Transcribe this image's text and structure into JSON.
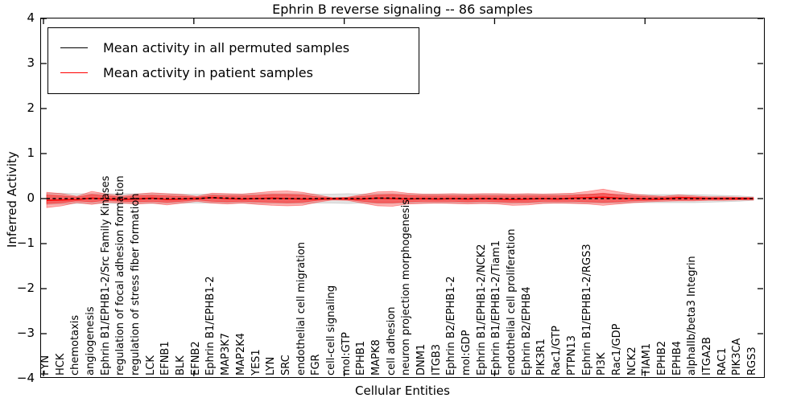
{
  "title": "Ephrin B reverse signaling -- 86 samples",
  "axes": {
    "xlabel": "Cellular Entities",
    "ylabel": "Inferred Activity",
    "yticks": [
      {
        "label": "4",
        "value": 4
      },
      {
        "label": "3",
        "value": 3
      },
      {
        "label": "2",
        "value": 2
      },
      {
        "label": "1",
        "value": 1
      },
      {
        "label": "0",
        "value": 0
      },
      {
        "label": "−1",
        "value": -1
      },
      {
        "label": "−2",
        "value": -2
      },
      {
        "label": "−3",
        "value": -3
      },
      {
        "label": "−4",
        "value": -4
      }
    ],
    "xtick_indices": [
      0,
      10,
      20,
      30,
      40
    ],
    "frame_color": "#000000"
  },
  "legend": {
    "items": [
      {
        "label": "Mean activity in all permuted samples",
        "color": "#000000"
      },
      {
        "label": "Mean activity in patient samples",
        "color": "#ff0000"
      }
    ]
  },
  "chart_data": {
    "type": "line",
    "title": "Ephrin B reverse signaling -- 86 samples",
    "xlabel": "Cellular Entities",
    "ylabel": "Inferred Activity",
    "ylim": [
      -4,
      4
    ],
    "grid": false,
    "legend_position": "upper left",
    "categories": [
      "FYN",
      "HCK",
      "chemotaxis",
      "angiogenesis",
      "Ephrin B1/EPHB1-2/Src Family Kinases",
      "regulation of focal adhesion formation",
      "regulation of stress fiber formation",
      "LCK",
      "EFNB1",
      "BLK",
      "EFNB2",
      "Ephrin B1/EPHB1-2",
      "MAP3K7",
      "MAP2K4",
      "YES1",
      "LYN",
      "SRC",
      "endothelial cell migration",
      "FGR",
      "cell-cell signaling",
      "mol:GTP",
      "EPHB1",
      "MAPK8",
      "cell adhesion",
      "neuron projection morphogenesis",
      "DNM1",
      "ITGB3",
      "Ephrin B2/EPHB1-2",
      "mol:GDP",
      "Ephrin B1/EPHB1-2/NCK2",
      "Ephrin B1/EPHB1-2/Tiam1",
      "endothelial cell proliferation",
      "Ephrin B2/EPHB4",
      "PIK3R1",
      "Rac1/GTP",
      "PTPN13",
      "Ephrin B1/EPHB1-2/RGS3",
      "PI3K",
      "Rac1/GDP",
      "NCK2",
      "TIAM1",
      "EPHB2",
      "EPHB4",
      "alphaIIb/beta3 Integrin",
      "ITGA2B",
      "RAC1",
      "PIK3CA",
      "RGS3"
    ],
    "series": [
      {
        "name": "Mean activity in all permuted samples",
        "color": "#000000",
        "style": "dashed",
        "values": [
          0,
          0,
          0,
          0,
          0,
          0,
          0,
          0,
          0,
          0,
          0,
          0.02,
          0.01,
          0,
          0,
          0,
          0,
          0,
          0,
          0,
          0,
          0,
          0.01,
          0.01,
          0,
          0,
          0,
          0,
          0,
          0,
          0,
          0,
          0,
          0,
          0,
          0,
          0,
          0,
          0,
          0,
          0,
          0,
          0,
          0,
          0,
          0,
          0,
          0
        ]
      },
      {
        "name": "Mean activity in patient samples",
        "color": "#ff0000",
        "style": "solid",
        "values": [
          -0.04,
          -0.03,
          -0.02,
          0.01,
          -0.01,
          -0.02,
          -0.01,
          0.01,
          -0.02,
          -0.01,
          0,
          0.02,
          0,
          -0.01,
          0,
          0.01,
          0,
          -0.01,
          -0.01,
          0,
          -0.01,
          -0.01,
          0.01,
          0,
          -0.01,
          0,
          -0.01,
          0,
          -0.01,
          0,
          -0.01,
          -0.02,
          -0.01,
          0,
          -0.01,
          0.01,
          0.02,
          0.03,
          0.01,
          0,
          -0.01,
          -0.01,
          0.02,
          0.01,
          0,
          0,
          0,
          0.01
        ]
      }
    ],
    "bands": [
      {
        "name": "permuted-sample-range",
        "color": "#999999",
        "opacity": 0.28,
        "upper": [
          0.12,
          0.12,
          0.11,
          0.11,
          0.11,
          0.11,
          0.11,
          0.11,
          0.11,
          0.1,
          0.1,
          0.1,
          0.1,
          0.1,
          0.11,
          0.11,
          0.11,
          0.11,
          0.1,
          0.1,
          0.11,
          0.1,
          0.11,
          0.11,
          0.1,
          0.1,
          0.1,
          0.1,
          0.1,
          0.1,
          0.1,
          0.1,
          0.1,
          0.1,
          0.1,
          0.1,
          0.1,
          0.1,
          0.1,
          0.09,
          0.09,
          0.09,
          0.09,
          0.09,
          0.08,
          0.07,
          0.06,
          0.04
        ],
        "lower": [
          -0.13,
          -0.12,
          -0.11,
          -0.11,
          -0.11,
          -0.11,
          -0.11,
          -0.11,
          -0.11,
          -0.1,
          -0.1,
          -0.1,
          -0.1,
          -0.1,
          -0.11,
          -0.11,
          -0.11,
          -0.11,
          -0.1,
          -0.1,
          -0.11,
          -0.1,
          -0.11,
          -0.11,
          -0.1,
          -0.1,
          -0.1,
          -0.1,
          -0.1,
          -0.1,
          -0.1,
          -0.11,
          -0.1,
          -0.1,
          -0.1,
          -0.1,
          -0.1,
          -0.1,
          -0.1,
          -0.09,
          -0.09,
          -0.09,
          -0.09,
          -0.09,
          -0.08,
          -0.07,
          -0.06,
          -0.04
        ]
      },
      {
        "name": "patient-sample-range-outer",
        "color": "#ff0000",
        "opacity": 0.3,
        "upper": [
          0.14,
          0.11,
          0.05,
          0.16,
          0.1,
          0.06,
          0.1,
          0.13,
          0.11,
          0.09,
          0.05,
          0.12,
          0.11,
          0.1,
          0.13,
          0.16,
          0.17,
          0.14,
          0.08,
          0.02,
          0.03,
          0.09,
          0.15,
          0.16,
          0.12,
          0.1,
          0.1,
          0.11,
          0.1,
          0.11,
          0.11,
          0.1,
          0.11,
          0.1,
          0.11,
          0.12,
          0.16,
          0.21,
          0.15,
          0.1,
          0.07,
          0.05,
          0.08,
          0.06,
          0.04,
          0.04,
          0.03,
          0.02
        ],
        "lower": [
          -0.2,
          -0.16,
          -0.09,
          -0.13,
          -0.08,
          -0.1,
          -0.12,
          -0.1,
          -0.14,
          -0.1,
          -0.06,
          -0.1,
          -0.12,
          -0.1,
          -0.13,
          -0.15,
          -0.16,
          -0.15,
          -0.08,
          -0.03,
          -0.04,
          -0.1,
          -0.16,
          -0.17,
          -0.12,
          -0.11,
          -0.1,
          -0.11,
          -0.12,
          -0.11,
          -0.12,
          -0.15,
          -0.14,
          -0.11,
          -0.1,
          -0.11,
          -0.12,
          -0.15,
          -0.12,
          -0.09,
          -0.07,
          -0.06,
          -0.05,
          -0.05,
          -0.04,
          -0.04,
          -0.03,
          -0.03
        ]
      },
      {
        "name": "patient-sample-range-inner",
        "color": "#ff0000",
        "opacity": 0.38,
        "upper": [
          0.08,
          0.06,
          0.03,
          0.09,
          0.06,
          0.03,
          0.06,
          0.07,
          0.06,
          0.05,
          0.03,
          0.07,
          0.06,
          0.06,
          0.07,
          0.09,
          0.09,
          0.08,
          0.04,
          0.01,
          0.02,
          0.05,
          0.08,
          0.09,
          0.07,
          0.06,
          0.06,
          0.06,
          0.06,
          0.06,
          0.06,
          0.06,
          0.06,
          0.06,
          0.06,
          0.07,
          0.09,
          0.12,
          0.08,
          0.06,
          0.04,
          0.03,
          0.04,
          0.03,
          0.02,
          0.02,
          0.02,
          0.01
        ],
        "lower": [
          -0.11,
          -0.09,
          -0.05,
          -0.07,
          -0.04,
          -0.06,
          -0.07,
          -0.06,
          -0.08,
          -0.06,
          -0.03,
          -0.06,
          -0.07,
          -0.06,
          -0.07,
          -0.08,
          -0.09,
          -0.08,
          -0.04,
          -0.02,
          -0.02,
          -0.06,
          -0.09,
          -0.09,
          -0.07,
          -0.06,
          -0.06,
          -0.06,
          -0.07,
          -0.06,
          -0.07,
          -0.08,
          -0.08,
          -0.06,
          -0.06,
          -0.06,
          -0.07,
          -0.08,
          -0.07,
          -0.05,
          -0.04,
          -0.03,
          -0.03,
          -0.03,
          -0.02,
          -0.02,
          -0.02,
          -0.02
        ]
      }
    ]
  }
}
